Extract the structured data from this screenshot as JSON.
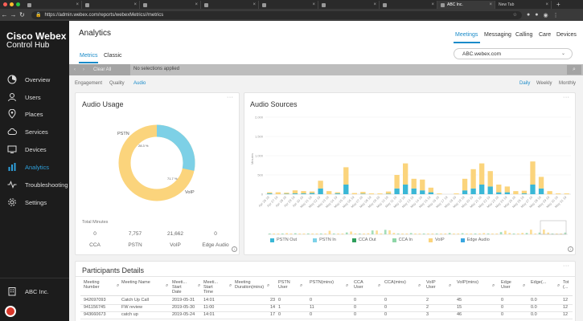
{
  "browser": {
    "url": "https://admin.webex.com/reports/webexMetrics//metrics",
    "tabs": [
      "",
      "",
      "",
      "",
      "",
      "",
      "",
      "ABC Inc.",
      "New Tab"
    ]
  },
  "sidebar": {
    "brand_line1": "Cisco Webex",
    "brand_line2": "Control Hub",
    "items": [
      {
        "label": "Overview",
        "icon": "overview-icon"
      },
      {
        "label": "Users",
        "icon": "user-icon"
      },
      {
        "label": "Places",
        "icon": "location-pin-icon"
      },
      {
        "label": "Services",
        "icon": "cloud-icon"
      },
      {
        "label": "Devices",
        "icon": "monitor-icon"
      },
      {
        "label": "Analytics",
        "icon": "analytics-icon"
      },
      {
        "label": "Troubleshooting",
        "icon": "pulse-icon"
      },
      {
        "label": "Settings",
        "icon": "gear-icon"
      }
    ],
    "active": "Analytics",
    "org": "ABC Inc."
  },
  "header": {
    "title": "Analytics",
    "tabs": [
      "Meetings",
      "Messaging",
      "Calling",
      "Care",
      "Devices"
    ],
    "active_tab": "Meetings",
    "subtabs": [
      "Metrics",
      "Classic"
    ],
    "active_subtab": "Metrics",
    "org_select": "ABC.webex.com"
  },
  "filterbar": {
    "clear_all": "Clear All",
    "status": "No selections applied"
  },
  "subnav": {
    "left": [
      "Engagement",
      "Quality",
      "Audio"
    ],
    "active_left": "Audio",
    "right": [
      "Daily",
      "Weekly",
      "Monthly"
    ],
    "active_right": "Daily"
  },
  "audio_usage": {
    "title": "Audio Usage",
    "pstn_label": "PSTN",
    "pstn_pct": "28.3 %",
    "voip_label": "VoIP",
    "voip_pct": "71.7 %",
    "pstn_fraction": 0.283,
    "total_minutes_label": "Total Minutes",
    "totals": [
      {
        "name": "CCA",
        "value": "0"
      },
      {
        "name": "PSTN",
        "value": "7,757"
      },
      {
        "name": "VoIP",
        "value": "21,662"
      },
      {
        "name": "Edge Audio",
        "value": "0"
      }
    ],
    "colors": {
      "pstn": "#7dd0e6",
      "voip": "#fbd47c"
    }
  },
  "audio_sources": {
    "title": "Audio Sources",
    "y_label": "Minutes",
    "colors": {
      "pstn_out": "#3ab7d6",
      "pstn_in": "#7ed2e8",
      "cca_out": "#2e9e5b",
      "cca_in": "#8fd6a8",
      "voip": "#fbd47c",
      "edge": "#39a6e0"
    },
    "legend": [
      "PSTN Out",
      "PSTN In",
      "CCA Out",
      "CCA In",
      "VoIP",
      "Edge Audio"
    ]
  },
  "chart_data": {
    "type": "bar",
    "title": "Audio Sources",
    "ylabel": "Minutes",
    "ylim": [
      0,
      2000
    ],
    "y_ticks": [
      "0",
      "500",
      "1,000",
      "1,500",
      "2,000"
    ],
    "categories": [
      "Apr 26 19",
      "Apr 27 19",
      "Apr 28 19",
      "Apr 29 19",
      "Apr 30 19",
      "May 01 19",
      "May 02 19",
      "May 03 19",
      "May 04 19",
      "May 05 19",
      "May 06 19",
      "May 07 19",
      "May 08 19",
      "May 09 19",
      "May 10 19",
      "May 11 19",
      "May 12 19",
      "May 13 19",
      "May 14 19",
      "May 15 19",
      "May 16 19",
      "May 17 19",
      "May 18 19",
      "May 19 19",
      "May 20 19",
      "May 21 19",
      "May 22 19",
      "May 23 19",
      "May 24 19",
      "May 25 19",
      "May 26 19",
      "May 27 19",
      "May 28 19",
      "May 29 19",
      "May 30 19",
      "May 31 19"
    ],
    "series": [
      {
        "name": "PSTN Out",
        "values": [
          20,
          0,
          10,
          20,
          20,
          30,
          150,
          0,
          20,
          250,
          0,
          10,
          0,
          0,
          10,
          150,
          250,
          150,
          100,
          50,
          0,
          0,
          0,
          100,
          150,
          250,
          200,
          50,
          50,
          0,
          20,
          250,
          150,
          0,
          0,
          0
        ]
      },
      {
        "name": "VoIP",
        "values": [
          30,
          50,
          30,
          80,
          60,
          40,
          200,
          80,
          30,
          450,
          30,
          50,
          20,
          20,
          60,
          350,
          550,
          250,
          280,
          120,
          20,
          0,
          20,
          300,
          500,
          550,
          400,
          200,
          150,
          80,
          70,
          600,
          300,
          80,
          20,
          20
        ]
      }
    ]
  },
  "participants": {
    "title": "Participants Details",
    "columns": [
      "Meeting Number",
      "Meeting Name",
      "Meeting Start Date",
      "Meeting Start Time",
      "Meeting Duration(mins)",
      "PSTN User",
      "PSTN(mins)",
      "CCA User",
      "CCA(mins)",
      "VoIP User",
      "VoIP(mins)",
      "Edge User",
      "Edge(...)",
      "Total(..."
    ],
    "columns_display": [
      "Meeting\nNumber",
      "Meeting Name",
      "Meeti...\nStart\nDate",
      "Meeti...\nStart\nTime",
      "Meeting\nDuration(mins)",
      "PSTN\nUser",
      "PSTN(mins)",
      "CCA\nUser",
      "CCA(mins)",
      "VoIP\nUser",
      "VoIP(mins)",
      "Edge\nUser",
      "Edge(...",
      "Tot\n(..."
    ],
    "rows": [
      [
        "942697093",
        "Catch Up Call",
        "2019-05-31",
        "14:01",
        "23",
        "0",
        "0",
        "0",
        "0",
        "2",
        "45",
        "0",
        "0.0",
        "12"
      ],
      [
        "941156745",
        "FW review",
        "2019-05-30",
        "11:00",
        "14",
        "1",
        "11",
        "0",
        "0",
        "2",
        "15",
        "0",
        "0.0",
        "12"
      ],
      [
        "943660673",
        "catch up",
        "2019-05-24",
        "14:01",
        "17",
        "0",
        "0",
        "0",
        "0",
        "3",
        "46",
        "0",
        "0.0",
        "12"
      ]
    ]
  }
}
